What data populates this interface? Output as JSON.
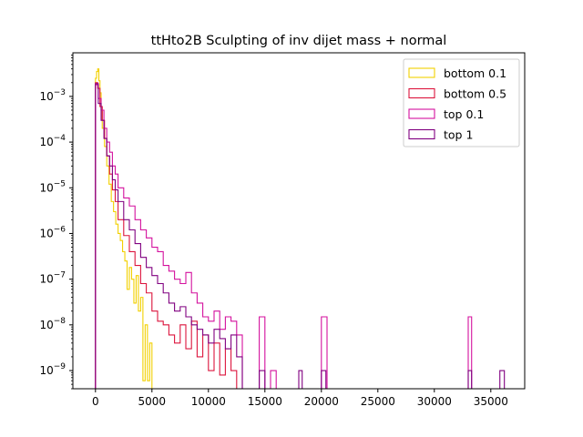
{
  "chart_data": {
    "type": "step-histogram",
    "title": "ttHto2B Sculpting of inv dijet mass + normal",
    "xlabel": "",
    "ylabel": "",
    "xlim": [
      -2000,
      38000
    ],
    "ylim": [
      4e-10,
      0.009
    ],
    "yscale": "log",
    "grid": false,
    "legend_position": "top-right",
    "x_ticks": [
      0,
      5000,
      10000,
      15000,
      20000,
      25000,
      30000,
      35000
    ],
    "x_tick_labels": [
      "0",
      "5000",
      "10000",
      "15000",
      "20000",
      "25000",
      "30000",
      "35000"
    ],
    "y_ticks": [
      1e-09,
      1e-08,
      1e-07,
      1e-06,
      1e-05,
      0.0001,
      0.001
    ],
    "y_tick_exponents": [
      "-9",
      "-8",
      "-7",
      "-6",
      "-5",
      "-4",
      "-3"
    ],
    "y_tick_base": "10",
    "series": [
      {
        "name": "bottom 0.1",
        "color": "#f2d000",
        "edges": [
          0,
          100,
          200,
          300,
          400,
          500,
          600,
          800,
          1000,
          1200,
          1400,
          1600,
          1800,
          2000,
          2200,
          2400,
          2600,
          2800,
          3000,
          3200,
          3400,
          3600,
          3800,
          4000,
          4200,
          4400,
          4600,
          4800,
          5000
        ],
        "values": [
          0.0025,
          0.0035,
          0.004,
          0.0022,
          0.0012,
          0.0005,
          0.0002,
          8e-05,
          3e-05,
          1.2e-05,
          5e-06,
          3e-06,
          1.6e-06,
          1e-06,
          7e-07,
          4e-07,
          2.5e-07,
          6e-08,
          1.8e-07,
          1e-07,
          3e-08,
          1.2e-07,
          2e-08,
          4e-08,
          6e-10,
          1e-08,
          6e-10,
          4e-09
        ]
      },
      {
        "name": "bottom 0.5",
        "color": "#dc143c",
        "edges": [
          0,
          200,
          400,
          600,
          800,
          1000,
          1250,
          1500,
          1750,
          2000,
          2500,
          3000,
          3500,
          4000,
          4500,
          5000,
          5500,
          6000,
          6500,
          7000,
          7500,
          8000,
          8500,
          9000,
          9500,
          10000,
          10500,
          11000,
          11500,
          12000,
          12500
        ],
        "values": [
          0.002,
          0.0015,
          0.0006,
          0.0003,
          0.00012,
          5e-05,
          2e-05,
          9e-06,
          5e-06,
          2e-06,
          9e-07,
          4e-07,
          2e-07,
          8e-08,
          5e-08,
          2e-08,
          1.2e-08,
          1e-08,
          6e-09,
          4e-09,
          1e-08,
          3e-09,
          1.2e-08,
          2e-09,
          6e-09,
          1e-09,
          4e-09,
          8e-10,
          3e-09,
          1e-09
        ]
      },
      {
        "name": "top 0.1",
        "color": "#d4119e",
        "edges": [
          0,
          250,
          500,
          750,
          1000,
          1250,
          1500,
          1750,
          2000,
          2500,
          3000,
          3500,
          4000,
          4500,
          5000,
          5500,
          6000,
          6500,
          7000,
          7500,
          8000,
          8500,
          9000,
          9500,
          10000,
          10500,
          11000,
          11500,
          12000,
          12500,
          13000,
          14500,
          15000,
          15500,
          16000,
          20000,
          20500,
          33000,
          33300
        ],
        "values": [
          0.0018,
          0.0009,
          0.0005,
          0.0002,
          0.0001,
          6e-05,
          3e-05,
          2e-05,
          1e-05,
          6e-06,
          4e-06,
          2e-06,
          1.2e-06,
          8e-07,
          5e-07,
          4e-07,
          2e-07,
          1.5e-07,
          1e-07,
          8e-08,
          1.4e-07,
          5e-08,
          3e-08,
          1.5e-08,
          1.2e-08,
          2e-08,
          8e-09,
          1.5e-08,
          1.2e-08,
          6e-09,
          4e-10,
          1.5e-08,
          4e-10,
          1e-09,
          4e-10,
          1.5e-08,
          4e-10,
          1.5e-08
        ]
      },
      {
        "name": "top 1",
        "color": "#800080",
        "edges": [
          0,
          250,
          500,
          750,
          1000,
          1250,
          1500,
          1750,
          2000,
          2500,
          3000,
          3500,
          4000,
          4500,
          5000,
          5500,
          6000,
          6500,
          7000,
          7500,
          8000,
          8500,
          9000,
          9500,
          10000,
          10500,
          11000,
          11500,
          12000,
          12500,
          13000,
          14500,
          15000,
          18000,
          18300,
          20000,
          20400,
          33000,
          33300,
          35800,
          36200
        ],
        "values": [
          0.0019,
          0.0007,
          0.0003,
          0.00012,
          5e-05,
          3e-05,
          1.5e-05,
          9e-06,
          5e-06,
          2e-06,
          1.2e-06,
          6e-07,
          3e-07,
          1.8e-07,
          1.2e-07,
          8e-08,
          5e-08,
          3e-08,
          2e-08,
          2.5e-08,
          1.5e-08,
          1e-08,
          8e-09,
          6e-09,
          4e-09,
          8e-09,
          5e-09,
          3e-09,
          6e-09,
          2e-09,
          4e-10,
          1e-09,
          4e-10,
          1e-09,
          4e-10,
          1e-09,
          4e-10,
          1e-09,
          4e-10,
          1e-09
        ]
      }
    ]
  }
}
